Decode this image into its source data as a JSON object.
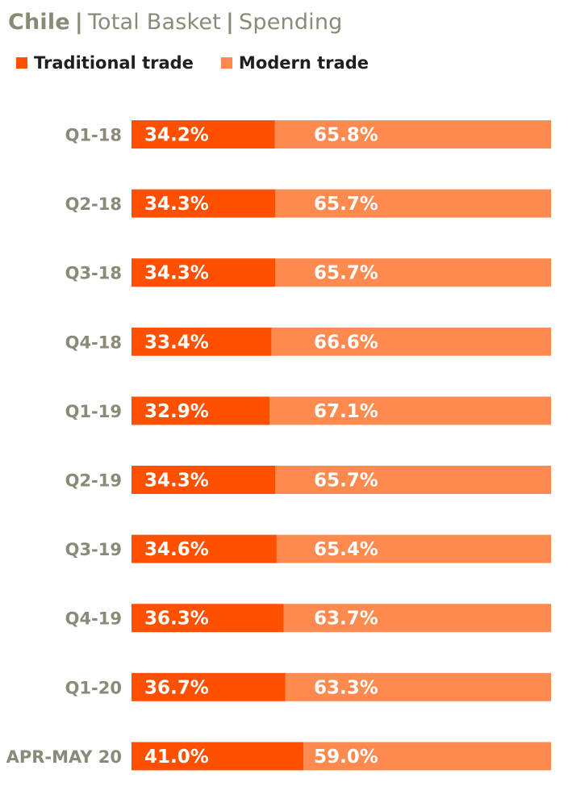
{
  "title": {
    "country": "Chile",
    "separator": "|",
    "basket": "Total Basket",
    "measure": "Spending"
  },
  "legend": {
    "traditional": "Traditional trade",
    "modern": "Modern trade"
  },
  "colors": {
    "traditional": "#ff5000",
    "modern": "#ff8a50",
    "label": "#8b8a78"
  },
  "chart_data": {
    "type": "bar",
    "orientation": "horizontal",
    "stacked": true,
    "percent_stacked": true,
    "title": "Chile | Total Basket | Spending",
    "categories": [
      "Q1-18",
      "Q2-18",
      "Q3-18",
      "Q4-18",
      "Q1-19",
      "Q2-19",
      "Q3-19",
      "Q4-19",
      "Q1-20",
      "APR-MAY 20"
    ],
    "series": [
      {
        "name": "Traditional trade",
        "values": [
          34.2,
          34.3,
          34.3,
          33.4,
          32.9,
          34.3,
          34.6,
          36.3,
          36.7,
          41.0
        ],
        "labels": [
          "34.2%",
          "34.3%",
          "34.3%",
          "33.4%",
          "32.9%",
          "34.3%",
          "34.6%",
          "36.3%",
          "36.7%",
          "41.0%"
        ]
      },
      {
        "name": "Modern trade",
        "values": [
          65.8,
          65.7,
          65.7,
          66.6,
          67.1,
          65.7,
          65.4,
          63.7,
          63.3,
          59.0
        ],
        "labels": [
          "65.8%",
          "65.7%",
          "65.7%",
          "66.6%",
          "67.1%",
          "65.7%",
          "65.4%",
          "63.7%",
          "63.3%",
          "59.0%"
        ]
      }
    ],
    "xlim": [
      0,
      100
    ],
    "grid": false,
    "legend_position": "top-left"
  }
}
